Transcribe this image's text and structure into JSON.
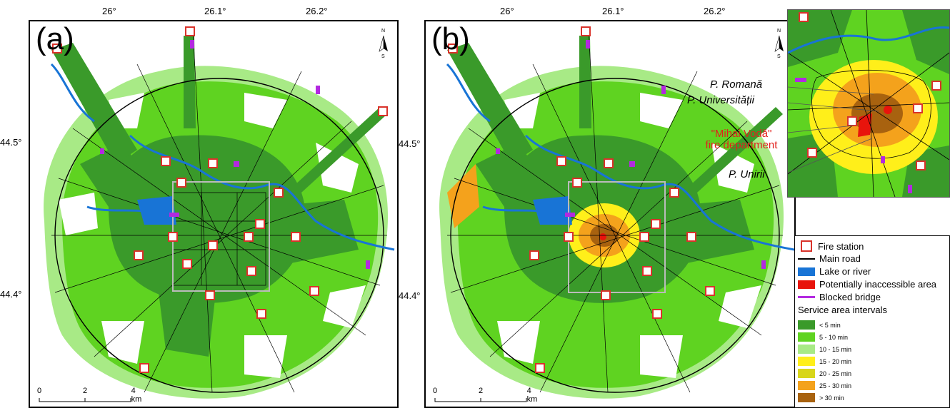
{
  "panels": [
    {
      "label": "(a)"
    },
    {
      "label": "(b)"
    }
  ],
  "axes": {
    "lon_ticks": [
      "26°",
      "26.1°",
      "26.2°"
    ],
    "lat_ticks": [
      "44.5°",
      "44.4°"
    ]
  },
  "north_arrow": {
    "n": "N",
    "s": "S"
  },
  "scale_bar": {
    "ticks": [
      "0",
      "2",
      "4 km"
    ]
  },
  "inset_callouts": {
    "p_romana": "P. Romană",
    "p_universitatii": "P. Universității",
    "fire_dept_line1": "\"Mihai Vodă\"",
    "fire_dept_line2": "fire department",
    "p_unirii": "P. Unirii"
  },
  "legend": {
    "fire_station": "Fire station",
    "main_road": "Main road",
    "lake_river": "Lake or river",
    "inaccessible": "Potentially inaccessible area",
    "blocked_bridge": "Blocked bridge",
    "service_title": "Service area intervals",
    "intervals": [
      {
        "label": "< 5 min",
        "color": "#3a9a2a"
      },
      {
        "label": "5 - 10 min",
        "color": "#5fd321"
      },
      {
        "label": "10 - 15 min",
        "color": "#a8ea86"
      },
      {
        "label": "15 - 20 min",
        "color": "#ffef1a"
      },
      {
        "label": "20 - 25 min",
        "color": "#d8d61a"
      },
      {
        "label": "25 - 30 min",
        "color": "#f4a21c"
      },
      {
        "label": "> 30 min",
        "color": "#a8620f"
      }
    ]
  },
  "colors": {
    "dark_green": "#3a9a2a",
    "green": "#5fd321",
    "light_green": "#a8ea86",
    "water": "#1874d6",
    "blocked_bridge": "#b329e0",
    "inaccessible": "#e8140c",
    "fire_station": "#d9322a"
  }
}
